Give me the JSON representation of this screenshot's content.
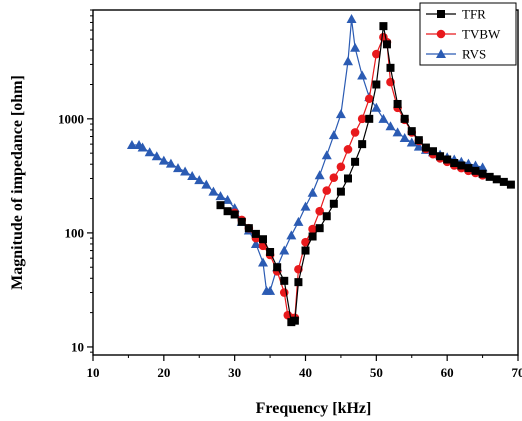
{
  "chart_data": {
    "type": "line",
    "title": "",
    "xlabel": "Frequency [kHz]",
    "ylabel": "Magnitude of impedance [ohm]",
    "xlim": [
      10,
      70
    ],
    "ylim": [
      8.5,
      9000
    ],
    "yscale": "log",
    "xticks": [
      10,
      20,
      30,
      40,
      50,
      60,
      70
    ],
    "yticks": [
      10,
      100,
      1000
    ],
    "grid": false,
    "legend_position": "top-right",
    "series": [
      {
        "name": "TFR",
        "color": "#000000",
        "marker": "square",
        "x": [
          28,
          29,
          30,
          31,
          32,
          33,
          34,
          35,
          36,
          37,
          38,
          38.5,
          39,
          40,
          41,
          42,
          43,
          44,
          45,
          46,
          47,
          48,
          49,
          50,
          51,
          51.5,
          52,
          53,
          54,
          55,
          56,
          57,
          58,
          59,
          60,
          61,
          62,
          63,
          64,
          65,
          66,
          67,
          68,
          69
        ],
        "y": [
          175,
          155,
          145,
          125,
          110,
          98,
          88,
          68,
          50,
          38,
          16.5,
          17,
          37,
          70,
          93,
          110,
          140,
          180,
          230,
          300,
          420,
          600,
          1000,
          2000,
          6500,
          4500,
          2800,
          1350,
          1000,
          780,
          650,
          560,
          520,
          470,
          440,
          410,
          390,
          370,
          350,
          330,
          310,
          295,
          280,
          265
        ]
      },
      {
        "name": "TVBW",
        "color": "#e8191c",
        "marker": "circle",
        "x": [
          30,
          31,
          32,
          33,
          34,
          35,
          36,
          37,
          37.5,
          38,
          38.5,
          39,
          40,
          41,
          42,
          43,
          44,
          45,
          46,
          47,
          48,
          49,
          50,
          51,
          51.5,
          52,
          53,
          54,
          55,
          56,
          57,
          58,
          59,
          60,
          61,
          62,
          63,
          64,
          65
        ],
        "y": [
          150,
          130,
          110,
          90,
          77,
          64,
          46,
          30,
          19,
          18,
          18,
          48,
          83,
          108,
          155,
          235,
          305,
          380,
          540,
          760,
          1000,
          1500,
          3700,
          5200,
          4700,
          2100,
          1250,
          980,
          760,
          640,
          545,
          490,
          450,
          420,
          390,
          370,
          350,
          335,
          320
        ]
      },
      {
        "name": "RVS",
        "color": "#2b5bb3",
        "marker": "triangle",
        "x": [
          15.5,
          16.5,
          17,
          18,
          19,
          20,
          21,
          22,
          23,
          24,
          25,
          26,
          27,
          28,
          29,
          30,
          31,
          32,
          33,
          34,
          34.5,
          35,
          36,
          37,
          38,
          39,
          40,
          41,
          42,
          43,
          44,
          45,
          46,
          46.5,
          47,
          48,
          49,
          50,
          51,
          52,
          53,
          54,
          55,
          56,
          57,
          58,
          59,
          60,
          61,
          62,
          63,
          64,
          65
        ],
        "y": [
          590,
          590,
          560,
          510,
          470,
          430,
          405,
          370,
          345,
          315,
          290,
          265,
          230,
          210,
          195,
          165,
          125,
          105,
          80,
          55,
          31,
          31,
          50,
          70,
          95,
          125,
          170,
          225,
          320,
          480,
          720,
          1100,
          3200,
          7500,
          4200,
          2400,
          1550,
          1250,
          1000,
          860,
          760,
          680,
          620,
          570,
          535,
          510,
          485,
          460,
          440,
          420,
          405,
          390,
          375
        ]
      }
    ]
  }
}
